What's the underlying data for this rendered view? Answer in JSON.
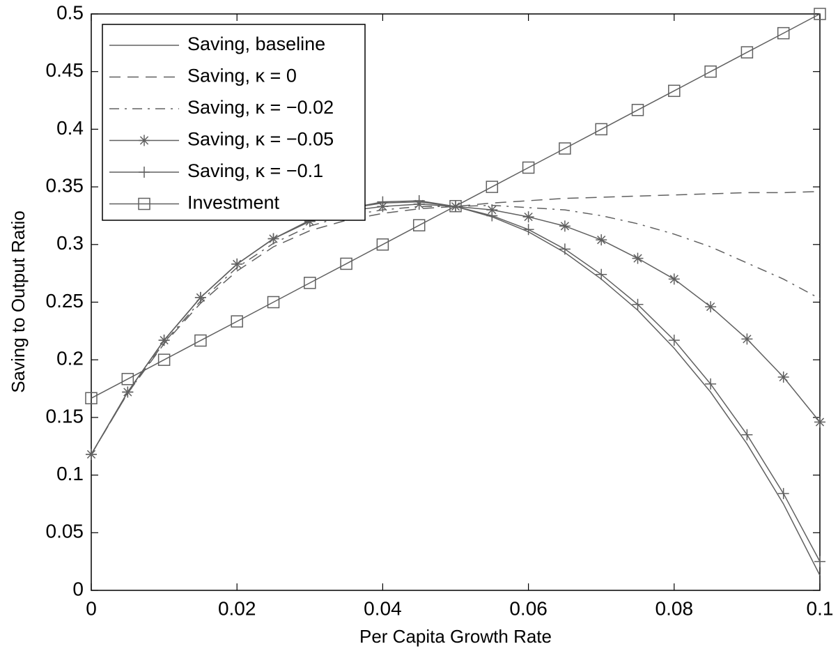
{
  "chart_data": {
    "type": "line",
    "x_label": "Per Capita Growth Rate",
    "y_label": "Saving to Output Ratio",
    "x": [
      0,
      0.005,
      0.01,
      0.015,
      0.02,
      0.025,
      0.03,
      0.035,
      0.04,
      0.045,
      0.05,
      0.055,
      0.06,
      0.065,
      0.07,
      0.075,
      0.08,
      0.085,
      0.09,
      0.095,
      0.1
    ],
    "xlim": [
      0,
      0.1
    ],
    "xticks": [
      0,
      0.02,
      0.04,
      0.06,
      0.08,
      0.1
    ],
    "ylim": [
      0,
      0.5
    ],
    "yticks": [
      0,
      0.05,
      0.1,
      0.15,
      0.2,
      0.25,
      0.3,
      0.35,
      0.4,
      0.45,
      0.5
    ],
    "legend": "upper left",
    "series": [
      {
        "name": "Saving, baseline",
        "color": "#606060",
        "linestyle": "-",
        "marker": "none",
        "values": [
          0.118,
          0.172,
          0.217,
          0.254,
          0.283,
          0.305,
          0.321,
          0.331,
          0.336,
          0.337,
          0.333,
          0.324,
          0.311,
          0.293,
          0.27,
          0.243,
          0.21,
          0.172,
          0.127,
          0.075,
          0.013
        ]
      },
      {
        "name": "Saving, κ = 0",
        "color": "#606060",
        "linestyle": "--",
        "marker": "none",
        "values": [
          0.118,
          0.171,
          0.214,
          0.249,
          0.277,
          0.298,
          0.312,
          0.321,
          0.327,
          0.331,
          0.333,
          0.336,
          0.338,
          0.34,
          0.341,
          0.342,
          0.343,
          0.344,
          0.345,
          0.345,
          0.346
        ]
      },
      {
        "name": "Saving, κ = −0.02",
        "color": "#606060",
        "linestyle": "-.",
        "marker": "none",
        "values": [
          0.118,
          0.171,
          0.215,
          0.251,
          0.28,
          0.301,
          0.316,
          0.325,
          0.33,
          0.333,
          0.333,
          0.334,
          0.332,
          0.33,
          0.325,
          0.318,
          0.309,
          0.298,
          0.284,
          0.27,
          0.253
        ]
      },
      {
        "name": "Saving, κ = −0.05",
        "color": "#606060",
        "linestyle": "-",
        "marker": "*",
        "values": [
          0.118,
          0.172,
          0.217,
          0.254,
          0.283,
          0.305,
          0.32,
          0.329,
          0.333,
          0.335,
          0.333,
          0.33,
          0.324,
          0.316,
          0.304,
          0.288,
          0.27,
          0.246,
          0.218,
          0.185,
          0.146
        ]
      },
      {
        "name": "Saving, κ = −0.1",
        "color": "#606060",
        "linestyle": "-",
        "marker": "+",
        "values": [
          0.118,
          0.172,
          0.217,
          0.254,
          0.283,
          0.305,
          0.321,
          0.331,
          0.337,
          0.338,
          0.333,
          0.325,
          0.313,
          0.296,
          0.274,
          0.248,
          0.217,
          0.179,
          0.135,
          0.084,
          0.025
        ]
      },
      {
        "name": "Investment",
        "color": "#606060",
        "linestyle": "-",
        "marker": "s",
        "values": [
          0.1667,
          0.1833,
          0.2,
          0.2167,
          0.2333,
          0.25,
          0.2667,
          0.2833,
          0.3,
          0.3167,
          0.3333,
          0.35,
          0.3667,
          0.3833,
          0.4,
          0.4167,
          0.4333,
          0.45,
          0.4667,
          0.4833,
          0.5
        ]
      }
    ]
  }
}
